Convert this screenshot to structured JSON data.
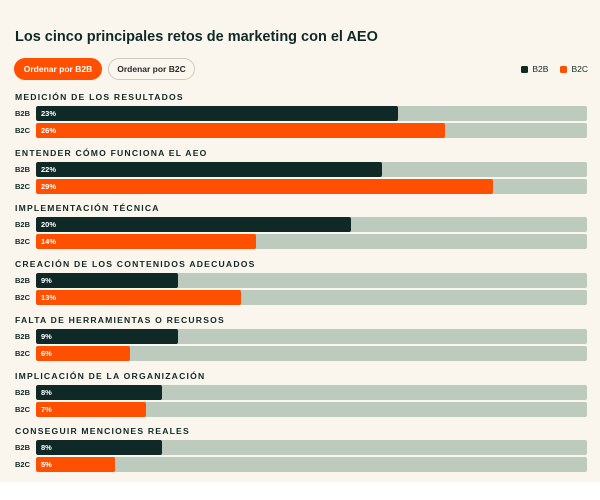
{
  "header": {
    "title": "Los cinco principales retos de marketing con el AEO",
    "sort_b2b": "Ordenar por B2B",
    "sort_b2c": "Ordenar por B2C"
  },
  "legend": [
    {
      "label": "B2B",
      "color": "#0f2a26"
    },
    {
      "label": "B2C",
      "color": "#ff4f00"
    }
  ],
  "colors": {
    "b2b": "#0f2a26",
    "b2c": "#ff4f00",
    "track": "#bccbbd",
    "background": "#faf6ee"
  },
  "chart_data": {
    "type": "bar",
    "orientation": "horizontal",
    "scale_max": 35,
    "grid": false,
    "legend_position": "top-right",
    "categories": [
      "MEDICIÓN DE LOS RESULTADOS",
      "ENTENDER CÓMO FUNCIONA EL AEO",
      "IMPLEMENTACIÓN TÉCNICA",
      "CREACIÓN DE LOS CONTENIDOS ADECUADOS",
      "FALTA DE HERRAMIENTAS O RECURSOS",
      "IMPLICACIÓN DE LA ORGANIZACIÓN",
      "CONSEGUIR MENCIONES REALES"
    ],
    "series": [
      {
        "name": "B2B",
        "values": [
          23,
          22,
          20,
          9,
          9,
          8,
          8
        ],
        "labels": [
          "23%",
          "22%",
          "20%",
          "9%",
          "9%",
          "8%",
          "8%"
        ]
      },
      {
        "name": "B2C",
        "values": [
          26,
          29,
          14,
          13,
          6,
          7,
          5
        ],
        "labels": [
          "26%",
          "29%",
          "14%",
          "13%",
          "6%",
          "7%",
          "5%"
        ]
      }
    ]
  }
}
